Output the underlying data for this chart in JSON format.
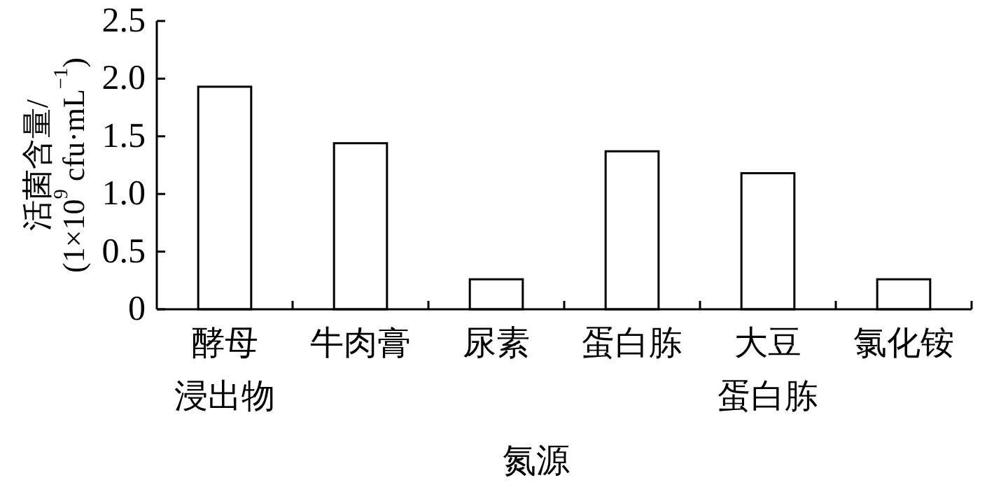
{
  "chart_data": {
    "type": "bar",
    "categories": [
      "酵母浸出物",
      "牛肉膏",
      "尿素",
      "蛋白胨",
      "大豆蛋白胨",
      "氯化铵"
    ],
    "values": [
      1.93,
      1.44,
      0.26,
      1.37,
      1.18,
      0.26
    ],
    "color": "#ffffff",
    "xlabel": "氮源",
    "ylabel": "活菌含量/\n(1×10$^{9}$ cfu·mL$^{−1}$)",
    "ylim": [
      0,
      2.5
    ],
    "yticks": [
      {
        "value": 0,
        "label": "0"
      },
      {
        "value": 0.5,
        "label": "0.5"
      },
      {
        "value": 1,
        "label": "1.0"
      },
      {
        "value": 1.5,
        "label": "1.5"
      },
      {
        "value": 2,
        "label": "2.0"
      },
      {
        "value": 2.5,
        "label": "2.5"
      }
    ],
    "grid": false
  }
}
